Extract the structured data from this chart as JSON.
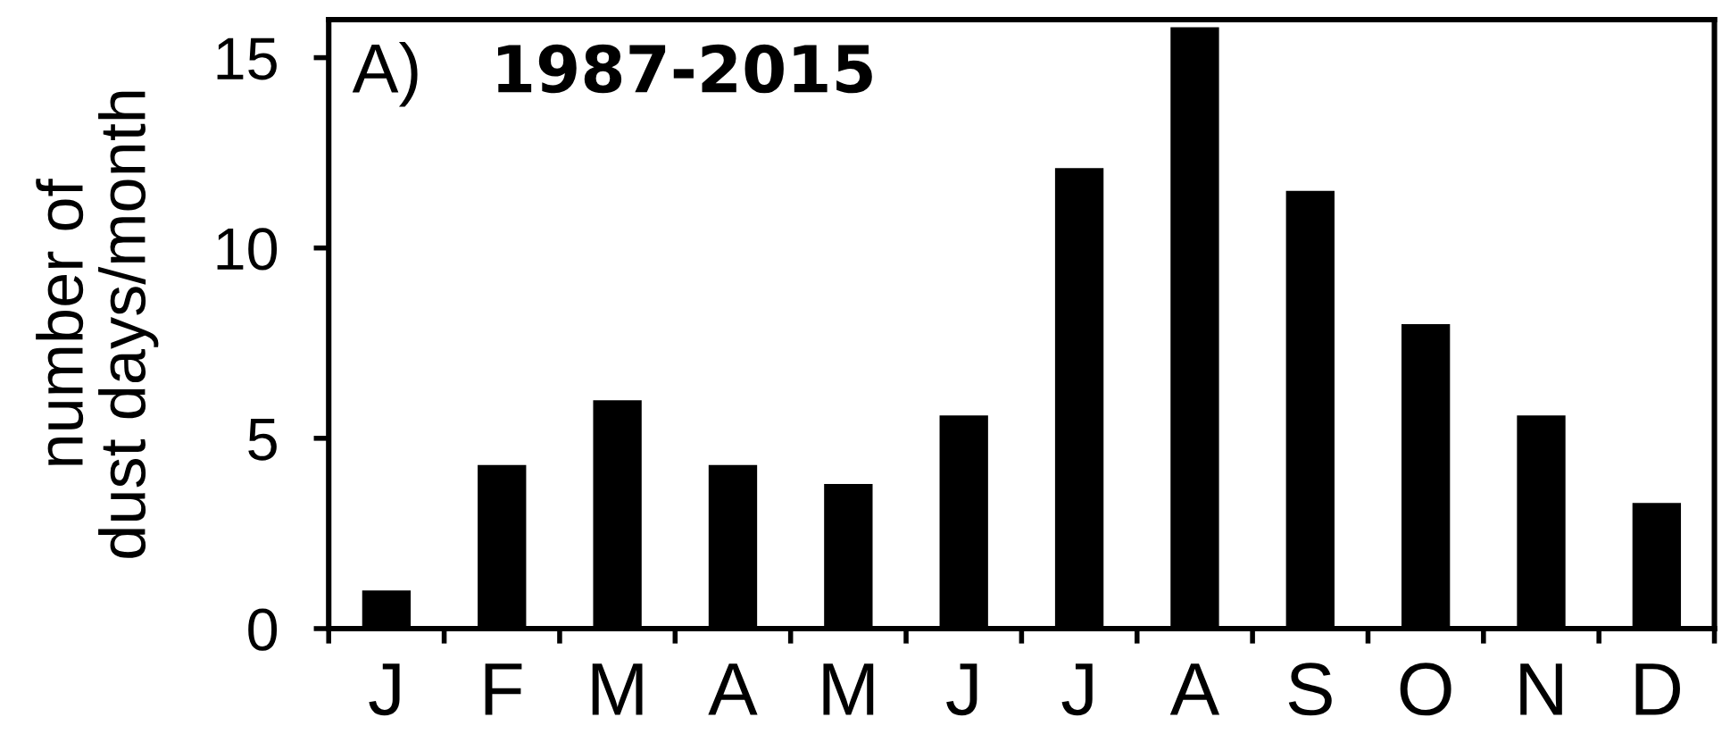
{
  "chart_data": {
    "type": "bar",
    "title": "1987-2015",
    "annotations": [
      "A)"
    ],
    "ylabel": "number of\ndust days/month",
    "categories": [
      "J",
      "F",
      "M",
      "A",
      "M",
      "J",
      "J",
      "A",
      "S",
      "O",
      "N",
      "D"
    ],
    "values": [
      1.0,
      4.3,
      6.0,
      4.3,
      3.8,
      5.6,
      12.1,
      15.8,
      11.5,
      8.0,
      5.6,
      3.3
    ],
    "color": "#000000",
    "ylim": [
      0,
      16
    ],
    "yticks": [
      0,
      5,
      10,
      15
    ]
  }
}
